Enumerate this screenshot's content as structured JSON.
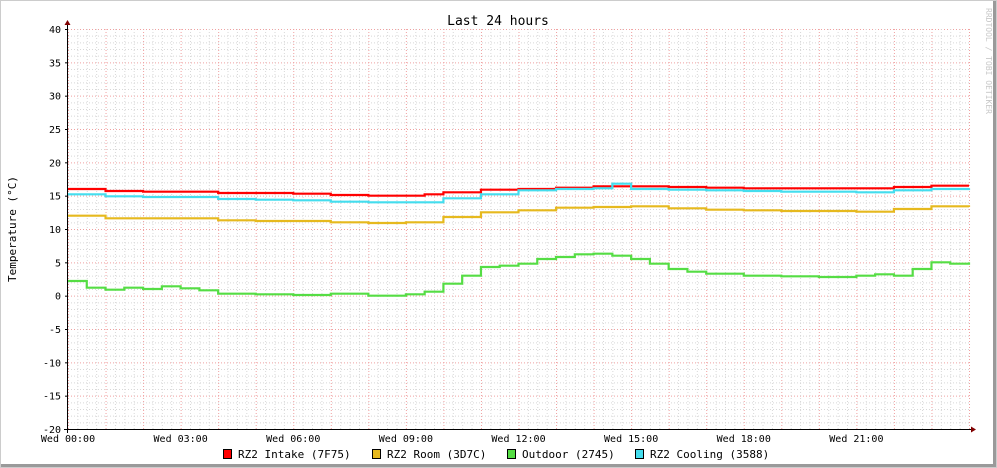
{
  "chart_data": {
    "type": "line",
    "title": "Last 24 hours",
    "ylabel": "Temperature (°C)",
    "xlabel": "",
    "watermark": "RRDTOOL / TOBI OETIKER",
    "ylim": [
      -20,
      40
    ],
    "yticks": [
      -20,
      -15,
      -10,
      -5,
      0,
      5,
      10,
      15,
      20,
      25,
      30,
      35,
      40
    ],
    "x_unit": "hours since Wed 00:00",
    "xlim": [
      0,
      24
    ],
    "xticks": [
      {
        "x": 0,
        "label": "Wed 00:00"
      },
      {
        "x": 3,
        "label": "Wed 03:00"
      },
      {
        "x": 6,
        "label": "Wed 06:00"
      },
      {
        "x": 9,
        "label": "Wed 09:00"
      },
      {
        "x": 12,
        "label": "Wed 12:00"
      },
      {
        "x": 15,
        "label": "Wed 15:00"
      },
      {
        "x": 18,
        "label": "Wed 18:00"
      },
      {
        "x": 21,
        "label": "Wed 21:00"
      }
    ],
    "grid": true,
    "legend_position": "bottom",
    "series": [
      {
        "name": "RZ2 Intake (7F75)",
        "color": "#ff0000",
        "x": [
          0,
          1,
          2,
          3,
          4,
          5,
          6,
          7,
          8,
          9,
          9.5,
          10,
          11,
          12,
          13,
          14,
          15,
          16,
          17,
          18,
          19,
          20,
          21,
          22,
          23,
          24
        ],
        "y": [
          16.0,
          15.7,
          15.6,
          15.6,
          15.4,
          15.4,
          15.3,
          15.1,
          15.0,
          15.0,
          15.2,
          15.5,
          15.9,
          16.0,
          16.2,
          16.4,
          16.4,
          16.3,
          16.2,
          16.1,
          16.1,
          16.1,
          16.1,
          16.3,
          16.5,
          16.5
        ]
      },
      {
        "name": "RZ2 Room (3D7C)",
        "color": "#e6b91e",
        "x": [
          0,
          1,
          2,
          3,
          4,
          5,
          6,
          7,
          8,
          9,
          10,
          11,
          12,
          13,
          14,
          15,
          16,
          17,
          18,
          19,
          20,
          21,
          22,
          23,
          24
        ],
        "y": [
          12.0,
          11.6,
          11.6,
          11.6,
          11.3,
          11.2,
          11.2,
          11.0,
          10.9,
          11.0,
          11.8,
          12.5,
          12.8,
          13.2,
          13.3,
          13.4,
          13.1,
          12.9,
          12.8,
          12.7,
          12.7,
          12.6,
          13.0,
          13.4,
          13.3
        ]
      },
      {
        "name": "Outdoor (2745)",
        "color": "#55dd44",
        "x": [
          0,
          0.5,
          1,
          1.5,
          2,
          2.5,
          3,
          3.5,
          4,
          5,
          6,
          7,
          8,
          9,
          9.5,
          10,
          10.5,
          11,
          11.5,
          12,
          12.5,
          13,
          13.5,
          14,
          14.5,
          15,
          15.5,
          16,
          16.5,
          17,
          18,
          19,
          20,
          21,
          21.5,
          22,
          22.5,
          23,
          23.5,
          24
        ],
        "y": [
          2.2,
          1.2,
          0.9,
          1.2,
          1.0,
          1.4,
          1.1,
          0.8,
          0.3,
          0.2,
          0.1,
          0.3,
          0.0,
          0.2,
          0.6,
          1.8,
          3.0,
          4.3,
          4.5,
          4.8,
          5.5,
          5.8,
          6.2,
          6.3,
          6.0,
          5.5,
          4.8,
          4.0,
          3.6,
          3.3,
          3.0,
          2.9,
          2.8,
          3.0,
          3.2,
          3.0,
          4.0,
          5.0,
          4.8,
          5.0
        ]
      },
      {
        "name": "RZ2 Cooling (3588)",
        "color": "#44ddee",
        "x": [
          0,
          1,
          2,
          3,
          4,
          5,
          6,
          7,
          8,
          9,
          10,
          11,
          12,
          13,
          14,
          14.5,
          15,
          16,
          17,
          18,
          19,
          20,
          21,
          22,
          23,
          24
        ],
        "y": [
          15.2,
          14.9,
          14.8,
          14.8,
          14.5,
          14.4,
          14.3,
          14.1,
          14.0,
          14.0,
          14.6,
          15.2,
          15.8,
          16.0,
          16.1,
          16.8,
          16.0,
          15.9,
          15.8,
          15.7,
          15.6,
          15.6,
          15.5,
          15.8,
          16.0,
          16.1
        ]
      }
    ]
  }
}
